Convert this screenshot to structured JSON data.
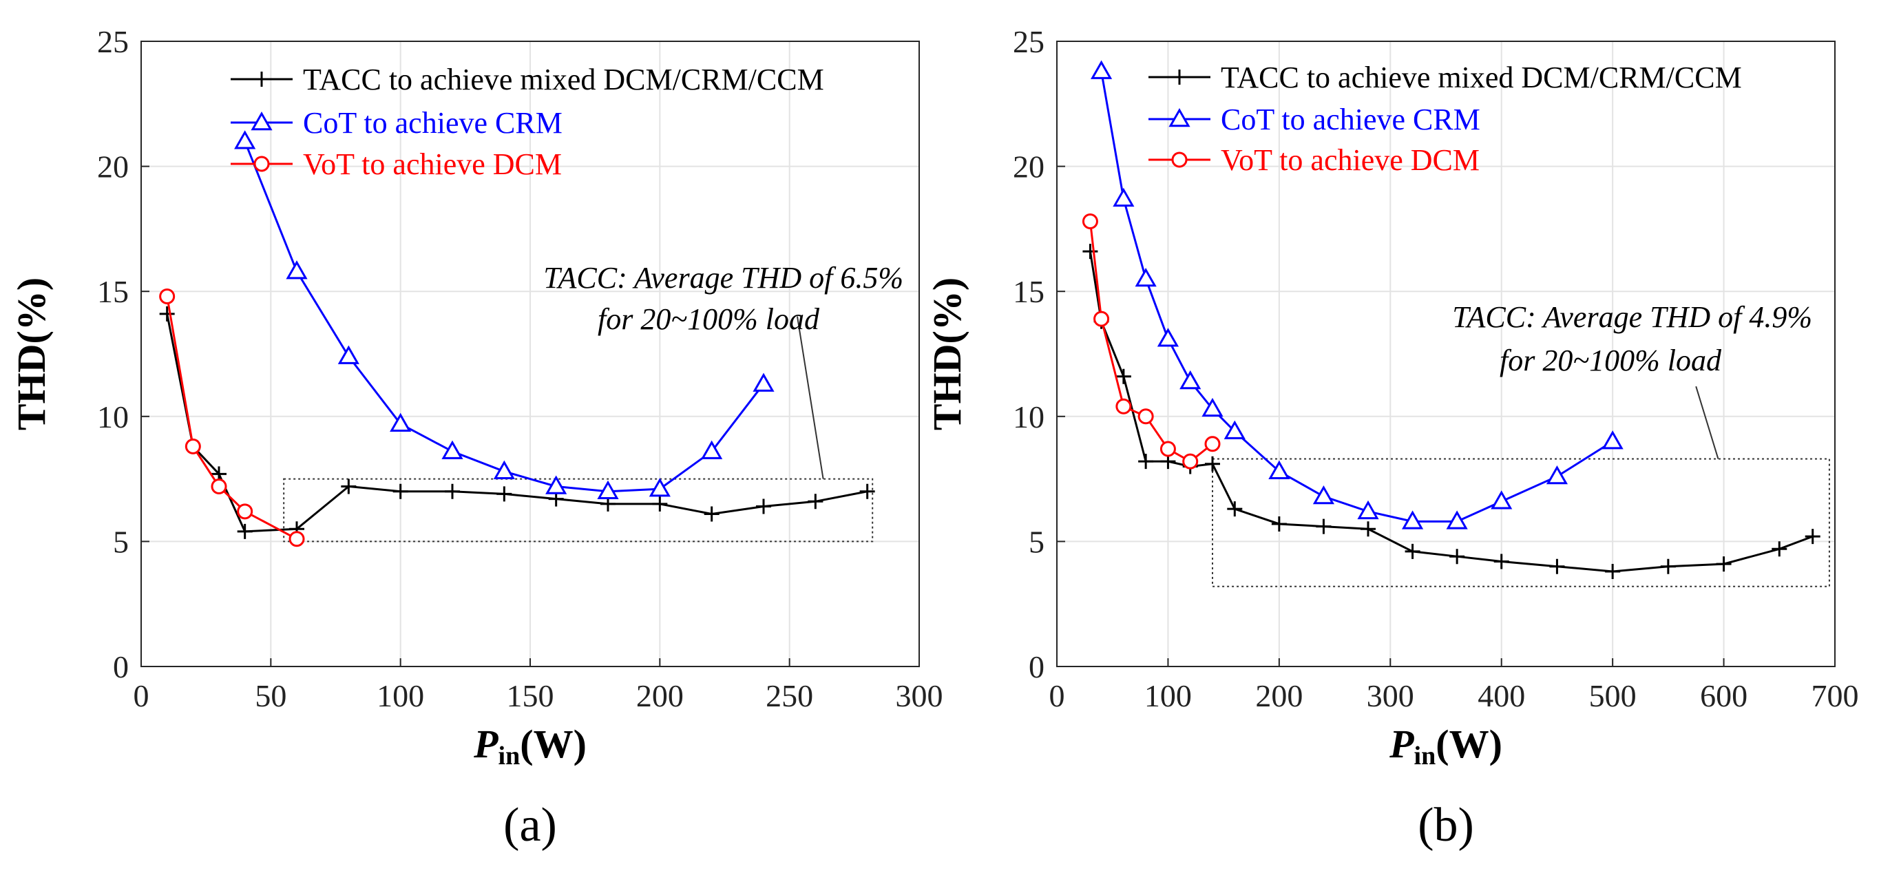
{
  "chart_data": [
    {
      "type": "line",
      "panel_label": "(a)",
      "xlabel_main": "P",
      "xlabel_sub": "in",
      "xlabel_unit": "(W)",
      "ylabel": "THD(%)",
      "xlim": [
        0,
        300
      ],
      "ylim": [
        0,
        25
      ],
      "xticks": [
        "0",
        "50",
        "100",
        "150",
        "200",
        "250",
        "300"
      ],
      "yticks": [
        "0",
        "5",
        "10",
        "15",
        "20",
        "25"
      ],
      "series": [
        {
          "name": "TACC to achieve mixed DCM/CRM/CCM",
          "color": "#000000",
          "marker": "plus",
          "x": [
            10,
            20,
            30,
            40,
            60,
            80,
            100,
            120,
            140,
            160,
            180,
            200,
            220,
            240,
            260,
            280
          ],
          "y": [
            14.1,
            8.8,
            7.7,
            5.4,
            5.5,
            7.2,
            7.0,
            7.0,
            6.9,
            6.7,
            6.5,
            6.5,
            6.1,
            6.4,
            6.6,
            7.0
          ]
        },
        {
          "name": "CoT to achieve CRM",
          "color": "#0000ff",
          "marker": "triangle",
          "x": [
            40,
            60,
            80,
            100,
            120,
            140,
            160,
            180,
            200,
            220,
            240
          ],
          "y": [
            21.0,
            15.8,
            12.4,
            9.7,
            8.6,
            7.8,
            7.2,
            7.0,
            7.1,
            8.6,
            11.3
          ]
        },
        {
          "name": "VoT to achieve DCM",
          "color": "#ff0000",
          "marker": "circle",
          "x": [
            10,
            20,
            30,
            40,
            60
          ],
          "y": [
            14.8,
            8.8,
            7.2,
            6.2,
            5.1
          ]
        }
      ],
      "annotation": {
        "line1": "TACC: Average THD of  6.5%",
        "line2": "for 20~100% load",
        "box_x": [
          55,
          282
        ],
        "box_y": [
          5.0,
          7.5
        ],
        "pointer_from": [
          253,
          14.0
        ],
        "pointer_to": [
          263,
          7.5
        ]
      }
    },
    {
      "type": "line",
      "panel_label": "(b)",
      "xlabel_main": "P",
      "xlabel_sub": "in",
      "xlabel_unit": "(W)",
      "ylabel": "THD(%)",
      "xlim": [
        0,
        700
      ],
      "ylim": [
        0,
        25
      ],
      "xticks": [
        "0",
        "100",
        "200",
        "300",
        "400",
        "500",
        "600",
        "700"
      ],
      "yticks": [
        "0",
        "5",
        "10",
        "15",
        "20",
        "25"
      ],
      "series": [
        {
          "name": "TACC to achieve mixed DCM/CRM/CCM",
          "color": "#000000",
          "marker": "plus",
          "x": [
            30,
            40,
            60,
            80,
            100,
            120,
            140,
            160,
            200,
            240,
            280,
            320,
            360,
            400,
            450,
            500,
            550,
            600,
            650,
            680
          ],
          "y": [
            16.6,
            13.8,
            11.6,
            8.2,
            8.2,
            8.0,
            8.1,
            6.3,
            5.7,
            5.6,
            5.5,
            4.6,
            4.4,
            4.2,
            4.0,
            3.8,
            4.0,
            4.1,
            4.7,
            5.2
          ]
        },
        {
          "name": "CoT to achieve CRM",
          "color": "#0000ff",
          "marker": "triangle",
          "x": [
            40,
            60,
            80,
            100,
            120,
            140,
            160,
            200,
            240,
            280,
            320,
            360,
            400,
            450,
            500
          ],
          "y": [
            23.8,
            18.7,
            15.5,
            13.1,
            11.4,
            10.3,
            9.4,
            7.8,
            6.8,
            6.2,
            5.8,
            5.8,
            6.6,
            7.6,
            9.0
          ]
        },
        {
          "name": "VoT to achieve DCM",
          "color": "#ff0000",
          "marker": "circle",
          "x": [
            30,
            40,
            60,
            80,
            100,
            120,
            140
          ],
          "y": [
            17.8,
            13.9,
            10.4,
            10.0,
            8.7,
            8.2,
            8.9
          ]
        }
      ],
      "annotation": {
        "line1": "TACC: Average THD of  4.9%",
        "line2": "for 20~100% load",
        "box_x": [
          140,
          695
        ],
        "box_y": [
          3.2,
          8.3
        ],
        "pointer_from": [
          575,
          11.2
        ],
        "pointer_to": [
          595,
          8.3
        ]
      }
    }
  ]
}
